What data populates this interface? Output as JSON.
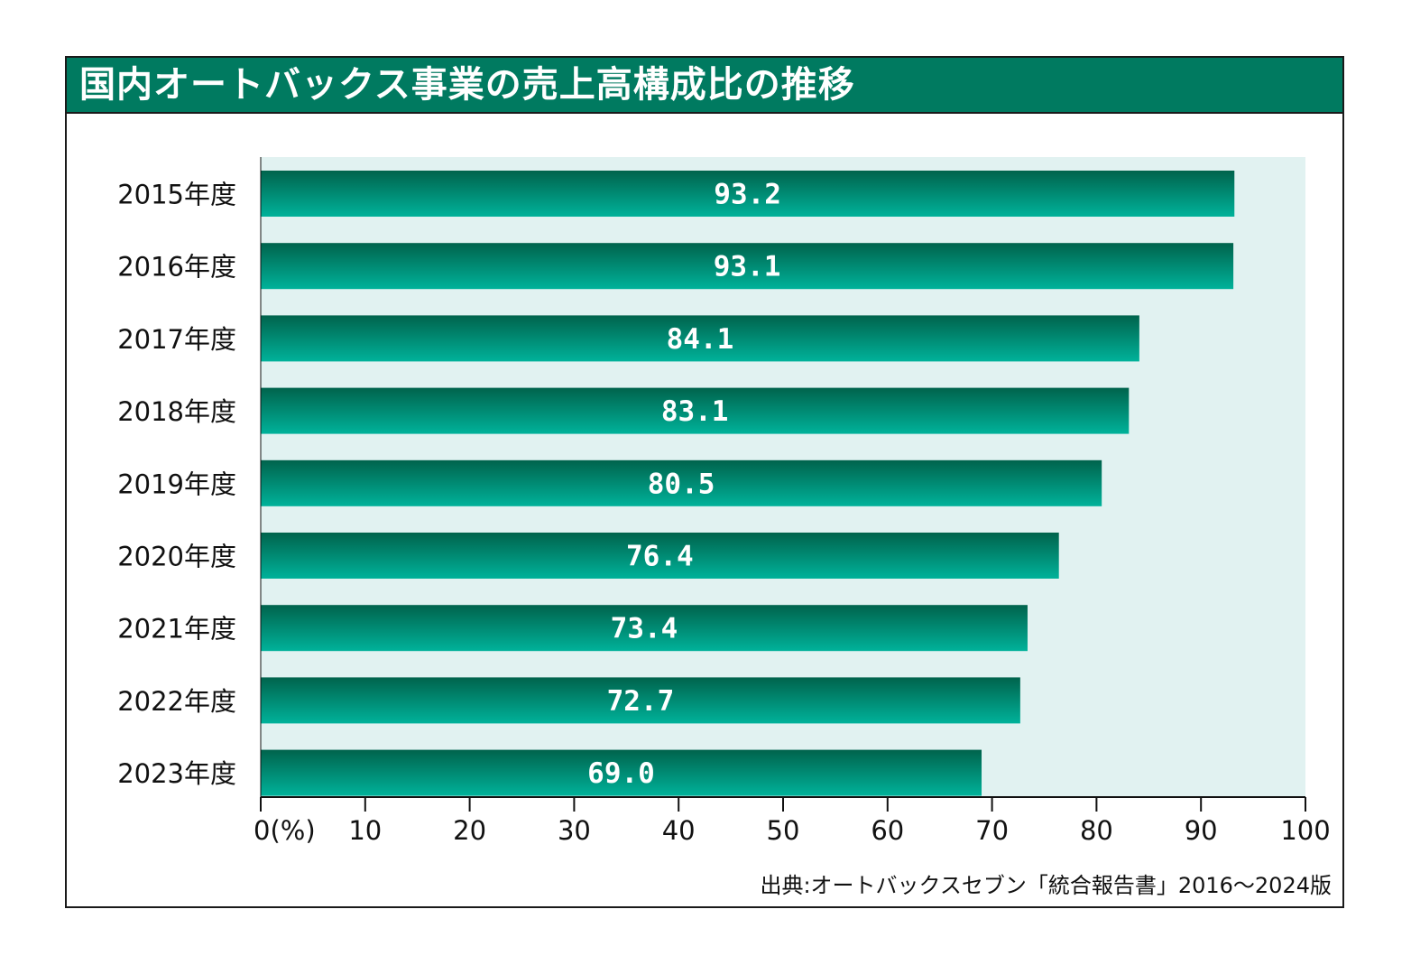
{
  "chart_data": {
    "type": "bar",
    "orientation": "horizontal",
    "title": "国内オートバックス事業の売上高構成比の推移",
    "categories": [
      "2015年度",
      "2016年度",
      "2017年度",
      "2018年度",
      "2019年度",
      "2020年度",
      "2021年度",
      "2022年度",
      "2023年度"
    ],
    "values": [
      93.2,
      93.1,
      84.1,
      83.1,
      80.5,
      76.4,
      73.4,
      72.7,
      69.0
    ],
    "value_labels": [
      "93.2",
      "93.1",
      "84.1",
      "83.1",
      "80.5",
      "76.4",
      "73.4",
      "72.7",
      "69.0"
    ],
    "xlim": [
      0,
      100
    ],
    "xticks": [
      0,
      10,
      20,
      30,
      40,
      50,
      60,
      70,
      80,
      90,
      100
    ],
    "xtick_labels": [
      "0(%)",
      "10",
      "20",
      "30",
      "40",
      "50",
      "60",
      "70",
      "80",
      "90",
      "100"
    ],
    "unit": "%",
    "source": "出典:オートバックスセブン「統合報告書」2016〜2024版",
    "colors": {
      "title_bg": "#007a60",
      "plot_bg": "#e1f2f1",
      "bar_top": "#00634c",
      "bar_bottom": "#00b29a",
      "bar_text": "#ffffff"
    }
  }
}
